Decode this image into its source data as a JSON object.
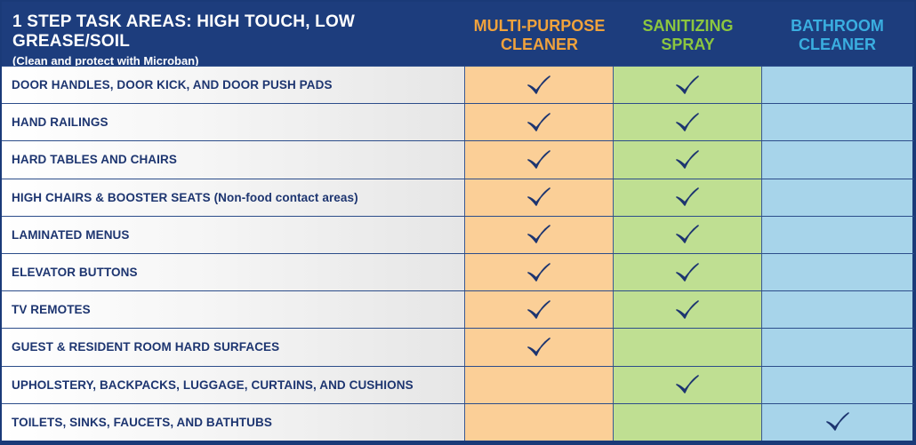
{
  "header": {
    "title": "1 STEP TASK AREAS: HIGH TOUCH, LOW GREASE/SOIL",
    "subtitle": "(Clean and protect with Microban)",
    "columns": [
      {
        "line1": "MULTI-PURPOSE",
        "line2": "CLEANER",
        "color": "#f0a23c"
      },
      {
        "line1": "SANITIZING",
        "line2": "SPRAY",
        "color": "#8cc63f"
      },
      {
        "line1": "BATHROOM",
        "line2": "CLEANER",
        "color": "#3aaee0"
      }
    ]
  },
  "colors": {
    "header_bg": "#1d3d7d",
    "multi_purpose_bg": "#fbcf97",
    "sanitizing_bg": "#bfdf92",
    "bathroom_bg": "#a7d4ea",
    "check": "#1d3570"
  },
  "rows": [
    {
      "label": "DOOR HANDLES, DOOR KICK, AND DOOR PUSH PADS",
      "checks": [
        true,
        true,
        false
      ]
    },
    {
      "label": "HAND RAILINGS",
      "checks": [
        true,
        true,
        false
      ]
    },
    {
      "label": "HARD TABLES AND CHAIRS",
      "checks": [
        true,
        true,
        false
      ]
    },
    {
      "label": "HIGH CHAIRS & BOOSTER SEATS (Non-food contact areas)",
      "checks": [
        true,
        true,
        false
      ]
    },
    {
      "label": "LAMINATED MENUS",
      "checks": [
        true,
        true,
        false
      ]
    },
    {
      "label": "ELEVATOR BUTTONS",
      "checks": [
        true,
        true,
        false
      ]
    },
    {
      "label": "TV REMOTES",
      "checks": [
        true,
        true,
        false
      ]
    },
    {
      "label": "GUEST & RESIDENT ROOM HARD SURFACES",
      "checks": [
        true,
        false,
        false
      ]
    },
    {
      "label": "UPHOLSTERY, BACKPACKS, LUGGAGE, CURTAINS, AND CUSHIONS",
      "checks": [
        false,
        true,
        false
      ]
    },
    {
      "label": "TOILETS, SINKS, FAUCETS, AND BATHTUBS",
      "checks": [
        false,
        false,
        true
      ]
    }
  ]
}
